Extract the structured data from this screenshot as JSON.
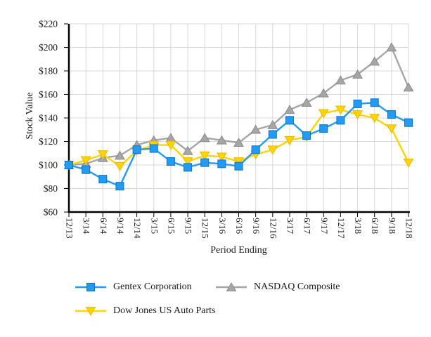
{
  "page": {
    "background": "#ffffff",
    "text_color": "#1a1a1a"
  },
  "chart_data": {
    "type": "line",
    "title": "",
    "xlabel": "Period Ending",
    "ylabel": "Stock Value",
    "categories": [
      "12/13",
      "3/14",
      "6/14",
      "9/14",
      "12/14",
      "3/15",
      "6/15",
      "9/15",
      "12/15",
      "3/16",
      "6/16",
      "9/16",
      "12/16",
      "3/17",
      "6/17",
      "9/17",
      "12/17",
      "3/18",
      "6/18",
      "9/18",
      "12/18"
    ],
    "y_ticks": [
      60,
      80,
      100,
      120,
      140,
      160,
      180,
      200,
      220
    ],
    "y_tick_prefix": "$",
    "ylim": [
      60,
      220
    ],
    "grid": true,
    "grid_color": "#d9d9d9",
    "axis_color": "#000000",
    "legend_position": "bottom",
    "series": [
      {
        "name": "Gentex Corporation",
        "marker": "square",
        "color": "#219CF2",
        "marker_stroke": "#0E72CE",
        "values": [
          100,
          96,
          88,
          82,
          113,
          114,
          103,
          98,
          102,
          101,
          99,
          113,
          126,
          138,
          125,
          131,
          138,
          152,
          153,
          143,
          136
        ]
      },
      {
        "name": "NASDAQ Composite",
        "marker": "triangle-up",
        "color": "#A6A6A6",
        "marker_stroke": "#8C8C8C",
        "values": [
          100,
          101,
          106,
          108,
          117,
          121,
          123,
          112,
          123,
          121,
          119,
          130,
          134,
          147,
          153,
          161,
          172,
          177,
          188,
          200,
          166
        ]
      },
      {
        "name": "Dow Jones US Auto Parts",
        "marker": "triangle-down",
        "color": "#FFD400",
        "marker_stroke": "#EDB800",
        "values": [
          100,
          104,
          109,
          99,
          112,
          117,
          117,
          103,
          108,
          107,
          103,
          109,
          113,
          121,
          124,
          144,
          147,
          143,
          140,
          131,
          102
        ]
      }
    ]
  }
}
